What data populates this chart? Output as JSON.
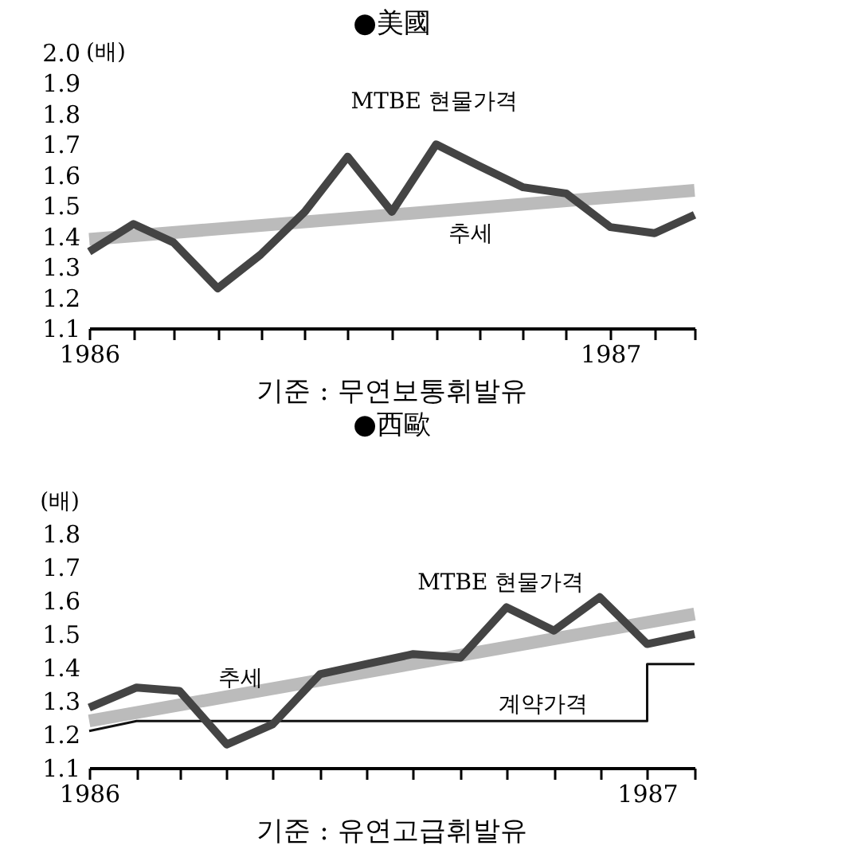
{
  "chart_data": [
    {
      "type": "line",
      "title": "●美國",
      "ylabel": "(배)",
      "annotations": [
        "기준 : 무연보통휘발유"
      ],
      "x": [
        "1986-01",
        "1986-02",
        "1986-03",
        "1986-04",
        "1986-05",
        "1986-06",
        "1986-07",
        "1986-08",
        "1986-09",
        "1986-10",
        "1986-11",
        "1986-12",
        "1987-01",
        "1987-02",
        "1987-03"
      ],
      "series": [
        {
          "name": "MTBE 현물가격",
          "color": "#444444",
          "values": [
            1.35,
            1.44,
            1.38,
            1.23,
            1.34,
            1.48,
            1.66,
            1.48,
            1.7,
            1.63,
            1.56,
            1.54,
            1.43,
            1.41,
            1.47
          ]
        },
        {
          "name": "추세",
          "color": "#bbbbbb",
          "x": [
            "1986-01",
            "1987-03"
          ],
          "values": [
            1.39,
            1.55
          ]
        }
      ],
      "xlim": [
        "1986-01",
        "1987-03"
      ],
      "xticks": [
        {
          "value": "1986-01",
          "label": "1986"
        },
        {
          "value": "1986-02",
          "label": null
        },
        {
          "value": "1986-03",
          "label": null
        },
        {
          "value": "1986-04",
          "label": null
        },
        {
          "value": "1986-05",
          "label": null
        },
        {
          "value": "1986-06",
          "label": null
        },
        {
          "value": "1986-07",
          "label": null
        },
        {
          "value": "1986-08",
          "label": null
        },
        {
          "value": "1986-09",
          "label": null
        },
        {
          "value": "1986-10",
          "label": null
        },
        {
          "value": "1986-11",
          "label": null
        },
        {
          "value": "1986-12",
          "label": null
        },
        {
          "value": "1987-01",
          "label": "1987"
        },
        {
          "value": "1987-02",
          "label": null
        },
        {
          "value": "1987-03",
          "label": null
        }
      ],
      "ylim": [
        1.1,
        2.0
      ],
      "yticks": [
        1.1,
        1.2,
        1.3,
        1.4,
        1.5,
        1.6,
        1.7,
        1.8,
        1.9,
        {
          "value": 2.0,
          "label": "2.0"
        }
      ]
    },
    {
      "type": "line",
      "title": "●西歐",
      "ylabel": "(배)",
      "annotations": [
        "기준 : 유연고급휘발유"
      ],
      "x": [
        "1986-01",
        "1986-02",
        "1986-03",
        "1986-04",
        "1986-05",
        "1986-06",
        "1986-07",
        "1986-08",
        "1986-09",
        "1986-10",
        "1986-11",
        "1986-12",
        "1987-01",
        "1987-02"
      ],
      "series": [
        {
          "name": "MTBE 현물가격",
          "color": "#444444",
          "values": [
            1.28,
            1.34,
            1.33,
            1.17,
            1.23,
            1.38,
            1.41,
            1.44,
            1.43,
            1.58,
            1.51,
            1.61,
            1.47,
            1.5
          ]
        },
        {
          "name": "추세",
          "color": "#bbbbbb",
          "x": [
            "1986-01",
            "1987-02"
          ],
          "values": [
            1.24,
            1.56
          ]
        },
        {
          "name": "계약가격",
          "color": "#111111",
          "x": [
            "1986-01",
            "1986-02",
            "1987-01",
            "1987-01",
            "1987-02"
          ],
          "values": [
            1.21,
            1.24,
            1.24,
            1.41,
            1.41
          ]
        }
      ],
      "xlim": [
        "1986-01",
        "1987-02"
      ],
      "xticks": [
        {
          "value": "1986-01",
          "label": "1986"
        },
        {
          "value": "1986-02",
          "label": null
        },
        {
          "value": "1986-03",
          "label": null
        },
        {
          "value": "1986-04",
          "label": null
        },
        {
          "value": "1986-05",
          "label": null
        },
        {
          "value": "1986-06",
          "label": null
        },
        {
          "value": "1986-07",
          "label": null
        },
        {
          "value": "1986-08",
          "label": null
        },
        {
          "value": "1986-09",
          "label": null
        },
        {
          "value": "1986-10",
          "label": null
        },
        {
          "value": "1986-11",
          "label": null
        },
        {
          "value": "1986-12",
          "label": null
        },
        {
          "value": "1987-01",
          "label": "1987"
        },
        {
          "value": "1987-02",
          "label": null
        }
      ],
      "ylim": [
        1.1,
        1.8
      ],
      "yticks": [
        1.1,
        1.2,
        1.3,
        1.4,
        1.5,
        1.6,
        1.7,
        1.8
      ]
    }
  ]
}
